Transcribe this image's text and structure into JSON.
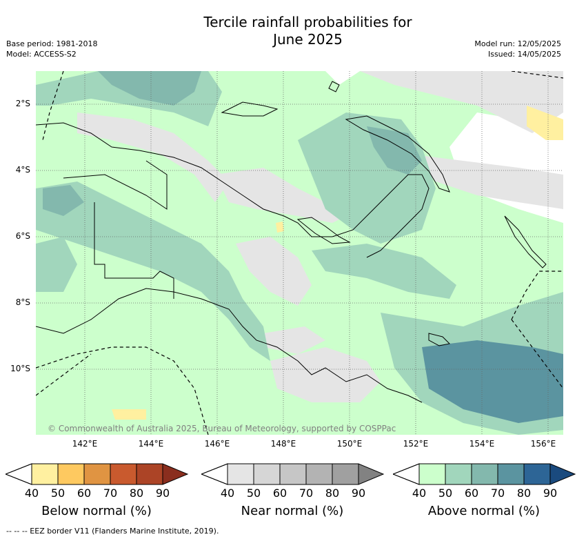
{
  "title": {
    "line1": "Tercile rainfall probabilities for",
    "line2": "June 2025"
  },
  "meta_left": {
    "base_period": "Base period: 1981-2018",
    "model": "Model: ACCESS-S2"
  },
  "meta_right": {
    "model_run": "Model run: 12/05/2025",
    "issued": "Issued: 14/05/2025"
  },
  "lat_labels": [
    "2°S",
    "4°S",
    "6°S",
    "8°S",
    "10°S"
  ],
  "lon_labels": [
    "142°E",
    "144°E",
    "146°E",
    "148°E",
    "150°E",
    "152°E",
    "154°E",
    "156°E"
  ],
  "copyright": "© Commonwealth of Australia 2025, Bureau of Meteorology, supported by COSPPac",
  "colorbars": [
    {
      "label": "Below normal (%)",
      "ticks": [
        "40",
        "50",
        "60",
        "70",
        "80",
        "90"
      ],
      "colors": [
        "#fff0a0",
        "#fec960",
        "#e09442",
        "#c95a2e",
        "#ac4426",
        "#8a2e1e"
      ]
    },
    {
      "label": "Near normal (%)",
      "ticks": [
        "40",
        "50",
        "60",
        "70",
        "80",
        "90"
      ],
      "colors": [
        "#e5e5e5",
        "#d6d6d6",
        "#c6c6c6",
        "#b3b3b3",
        "#a0a0a0",
        "#828282"
      ]
    },
    {
      "label": "Above normal (%)",
      "ticks": [
        "40",
        "50",
        "60",
        "70",
        "80",
        "90"
      ],
      "colors": [
        "#ccffcc",
        "#a1d6bc",
        "#83b8ad",
        "#5b94a0",
        "#2d6596",
        "#1a4a7e"
      ]
    }
  ],
  "footer": "--  --  -- EEZ border V11 (Flanders Marine Institute, 2019).",
  "map_colors": {
    "above_50": "#a1d6bc",
    "above_40": "#ccffcc",
    "above_60": "#83b8ad",
    "above_70": "#5b94a0",
    "near_40": "#e5e5e5",
    "below_40": "#fff0a0"
  }
}
